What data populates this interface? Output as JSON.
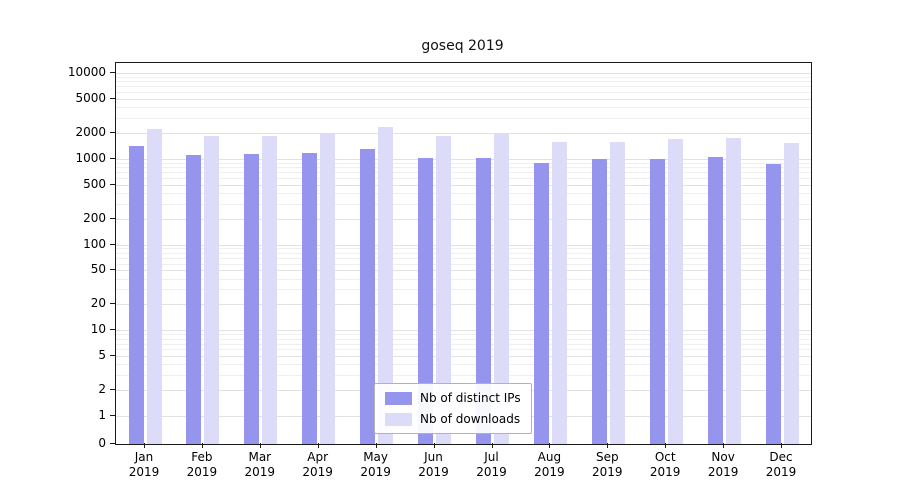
{
  "chart_data": {
    "type": "bar",
    "title": "goseq 2019",
    "categories": [
      "Jan",
      "Feb",
      "Mar",
      "Apr",
      "May",
      "Jun",
      "Jul",
      "Aug",
      "Sep",
      "Oct",
      "Nov",
      "Dec"
    ],
    "year_label": "2019",
    "series": [
      {
        "name": "Nb of distinct IPs",
        "color": "#9595ee",
        "values": [
          1400,
          1100,
          1150,
          1180,
          1300,
          1020,
          1010,
          900,
          990,
          990,
          1050,
          870
        ]
      },
      {
        "name": "Nb of downloads",
        "color": "#dcdcf8",
        "values": [
          2250,
          1850,
          1850,
          1980,
          2350,
          1830,
          1950,
          1560,
          1560,
          1700,
          1750,
          1520
        ]
      }
    ],
    "y_axis": {
      "scale": "log",
      "tick_labels": [
        0,
        1,
        2,
        5,
        10,
        20,
        50,
        100,
        200,
        500,
        1000,
        2000,
        5000,
        10000
      ],
      "top": 10000
    },
    "x_axis": {
      "label": "",
      "tick_style": "month-over-year"
    },
    "grid": "horizontal-log-minor",
    "legend_position": "bottom-center-inside"
  }
}
